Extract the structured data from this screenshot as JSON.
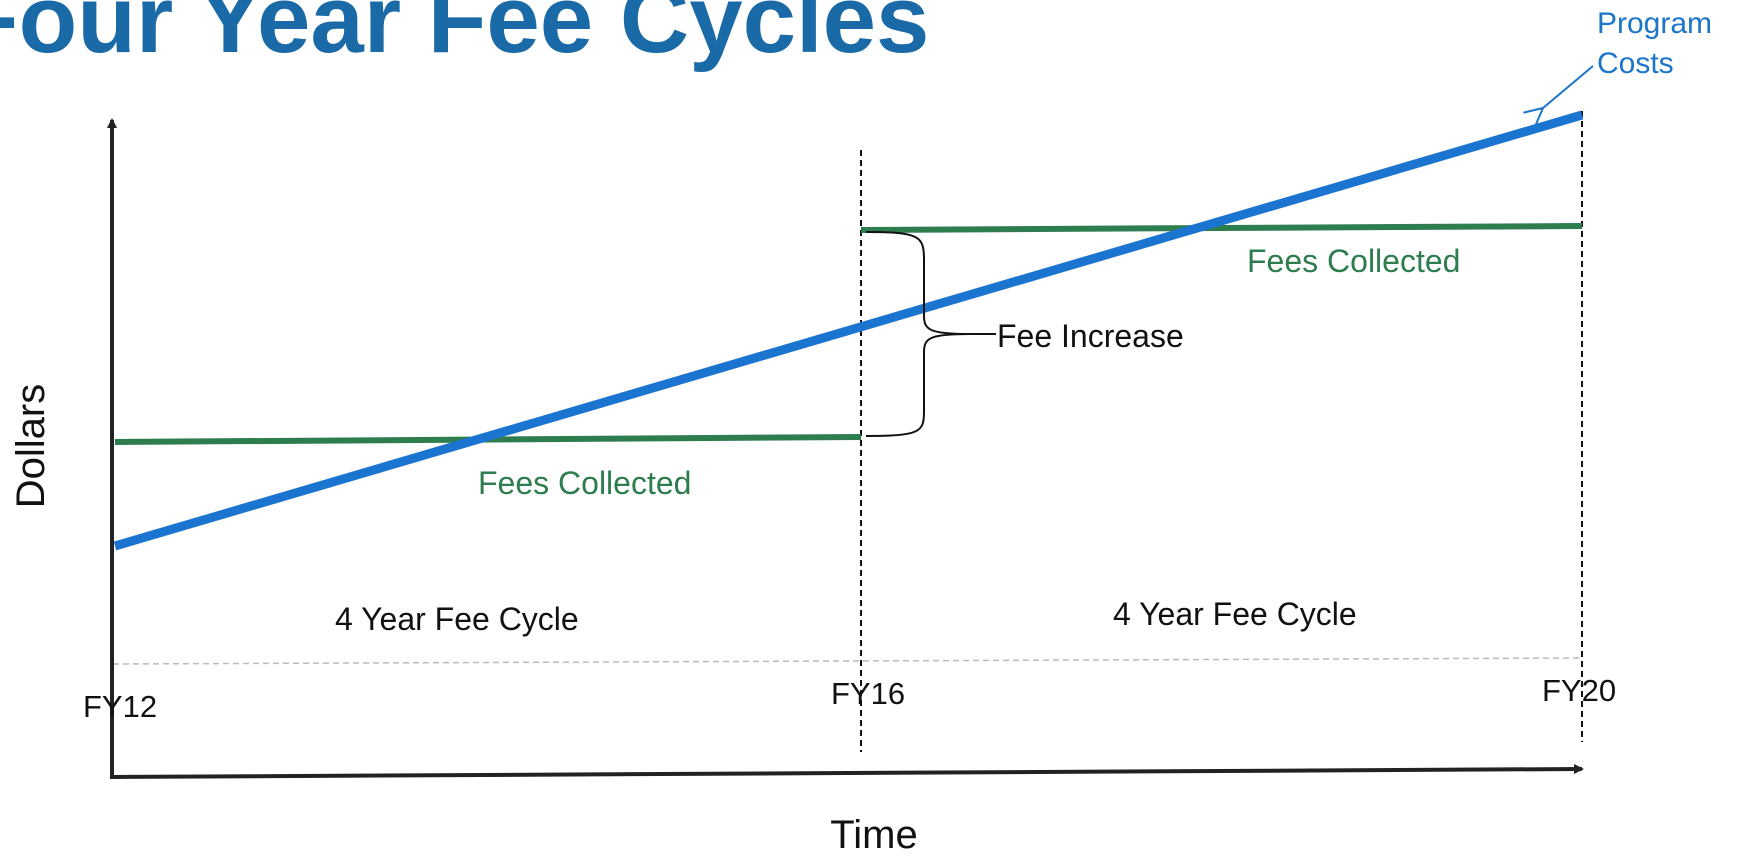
{
  "title": "Four Year Fee Cycles",
  "y_axis_label": "Dollars",
  "x_axis_label": "Time",
  "x_ticks": [
    "FY12",
    "FY16",
    "FY20"
  ],
  "annotations": {
    "program_costs": "Program Costs",
    "fees_collected_1": "Fees Collected",
    "fees_collected_2": "Fees Collected",
    "fee_increase": "Fee Increase",
    "cycle_1": "4 Year Fee Cycle",
    "cycle_2": "4 Year Fee Cycle"
  }
}
